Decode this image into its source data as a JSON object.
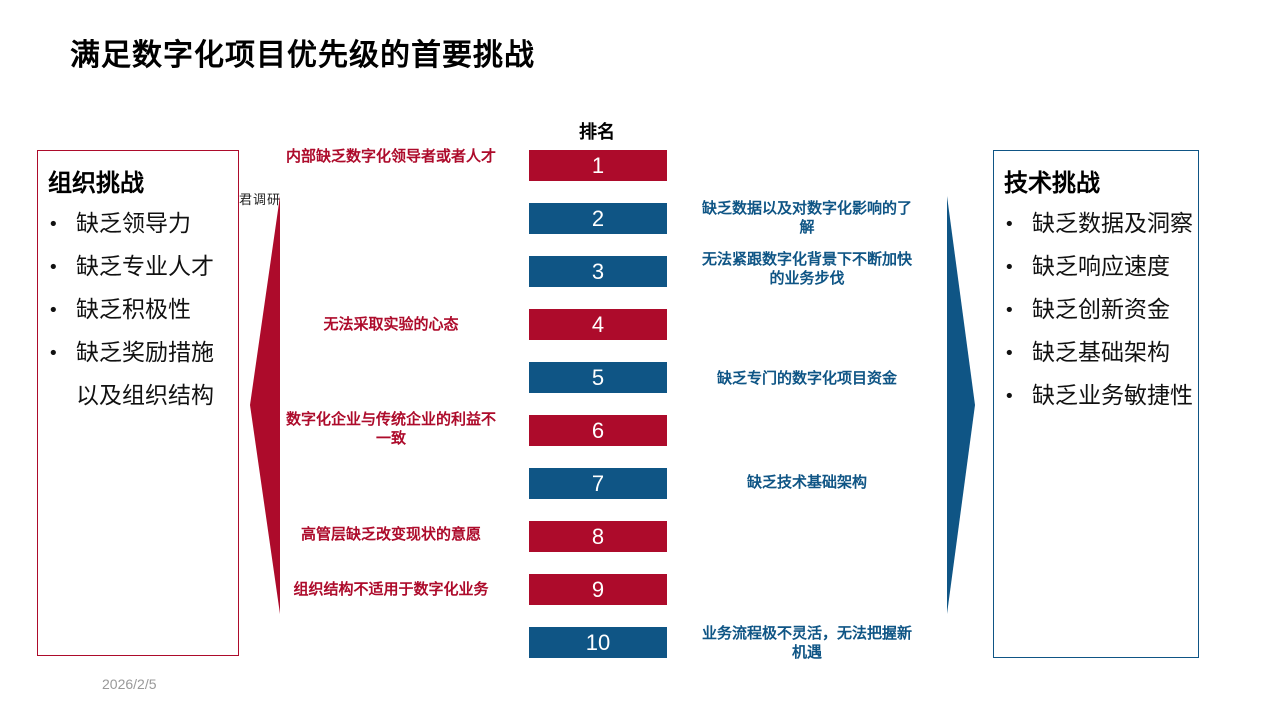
{
  "title": "满足数字化项目优先级的首要挑战",
  "rank_header": "排名",
  "org_box": {
    "title": "组织挑战",
    "items": [
      "缺乏领导力",
      "缺乏专业人才",
      "缺乏积极性",
      "缺乏奖励措施以及组织结构"
    ]
  },
  "tech_box": {
    "title": "技术挑战",
    "items": [
      "缺乏数据及洞察",
      "缺乏响应速度",
      "缺乏创新资金",
      "缺乏基础架构",
      "缺乏业务敏捷性"
    ]
  },
  "side_note": "君调研",
  "ranks": [
    {
      "num": "1",
      "color": "red"
    },
    {
      "num": "2",
      "color": "blue"
    },
    {
      "num": "3",
      "color": "blue"
    },
    {
      "num": "4",
      "color": "red"
    },
    {
      "num": "5",
      "color": "blue"
    },
    {
      "num": "6",
      "color": "red"
    },
    {
      "num": "7",
      "color": "blue"
    },
    {
      "num": "8",
      "color": "red"
    },
    {
      "num": "9",
      "color": "red"
    },
    {
      "num": "10",
      "color": "blue"
    }
  ],
  "red_labels": [
    "内部缺乏数字化领导者或者人才",
    "无法采取实验的心态",
    "数字化企业与传统企业的利益不一致",
    "高管层缺乏改变现状的意愿",
    "组织结构不适用于数字化业务"
  ],
  "blue_labels": [
    "缺乏数据以及对数字化影响的了解",
    "无法紧跟数字化背景下不断加快的业务步伐",
    "缺乏专门的数字化项目资金",
    "缺乏技术基础架构",
    "业务流程极不灵活，无法把握新机遇"
  ],
  "colors": {
    "red": "#ad0b2b",
    "blue": "#0f5585"
  },
  "date": "2026/2/5"
}
